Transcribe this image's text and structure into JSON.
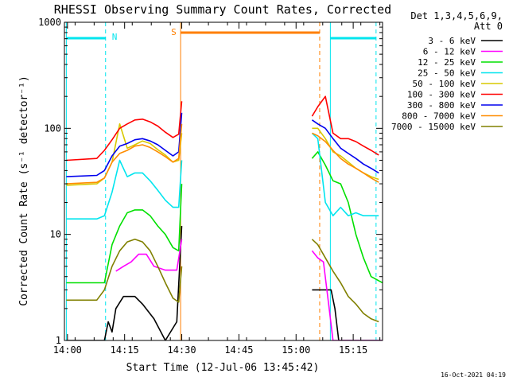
{
  "chart_data": {
    "type": "line",
    "title": "RHESSI Observing Summary Count Rates, Corrected",
    "xlabel": "Start Time (12-Jul-06 13:45:42)",
    "ylabel": "Corrected Count Rate (s⁻¹ detector⁻¹)",
    "yscale": "log",
    "ylim": [
      1,
      1000
    ],
    "xlim_minutes": [
      13.5,
      97
    ],
    "x_tick_labels": [
      "14:00",
      "14:15",
      "14:30",
      "14:45",
      "15:00",
      "15:15"
    ],
    "x_tick_minutes": [
      14.3,
      29.3,
      44.3,
      59.3,
      74.3,
      89.3
    ],
    "y_tick_values": [
      1,
      10,
      100,
      1000
    ],
    "y_tick_labels": [
      "1",
      "10",
      "100",
      "1000"
    ],
    "footer_date": "16-Oct-2021 04:19",
    "legend": {
      "title_line1": "Det 1,3,4,5,6,9,",
      "title_line2": "Att 0",
      "placement": "right"
    },
    "annotations": {
      "night_label": "N",
      "saa_label": "S",
      "night_color": "#00e5ee",
      "saa_color": "#ff7f00",
      "night_boundaries_minutes": [
        14,
        24.3,
        83.3,
        95.3
      ],
      "saa_boundaries_minutes": [
        44,
        80.5
      ]
    },
    "data_gaps_minutes": [
      [
        44.5,
        78.5
      ]
    ],
    "series": [
      {
        "name": "3 - 6 keV",
        "color": "#000000",
        "points": [
          [
            14,
            1
          ],
          [
            22,
            1
          ],
          [
            24,
            1
          ],
          [
            25,
            1.5
          ],
          [
            26,
            1.2
          ],
          [
            27,
            2.0
          ],
          [
            29,
            2.6
          ],
          [
            32,
            2.6
          ],
          [
            34,
            2.2
          ],
          [
            37,
            1.6
          ],
          [
            40,
            1.0
          ],
          [
            43,
            1.5
          ],
          [
            44.3,
            12
          ],
          [
            78.5,
            3.0
          ],
          [
            82,
            3.0
          ],
          [
            83.5,
            3.0
          ],
          [
            84.5,
            2.0
          ],
          [
            85.5,
            1.0
          ],
          [
            97,
            1.0
          ]
        ]
      },
      {
        "name": "6 - 12 keV",
        "color": "#ff00ff",
        "points": [
          [
            27,
            4.5
          ],
          [
            29,
            5.0
          ],
          [
            31,
            5.5
          ],
          [
            33,
            6.5
          ],
          [
            35,
            6.5
          ],
          [
            37,
            5.0
          ],
          [
            40,
            4.6
          ],
          [
            43,
            4.6
          ],
          [
            44.3,
            9.0
          ],
          [
            78.5,
            7.0
          ],
          [
            80,
            6.0
          ],
          [
            81.5,
            5.5
          ],
          [
            83,
            2.0
          ],
          [
            84,
            1.0
          ],
          [
            97,
            1.0
          ]
        ]
      },
      {
        "name": "12 - 25 keV",
        "color": "#00e000",
        "points": [
          [
            14,
            3.5
          ],
          [
            22,
            3.5
          ],
          [
            24,
            3.5
          ],
          [
            26,
            8.0
          ],
          [
            28,
            12
          ],
          [
            30,
            16
          ],
          [
            32,
            17
          ],
          [
            34,
            17
          ],
          [
            36,
            15
          ],
          [
            38,
            12
          ],
          [
            40,
            10
          ],
          [
            42,
            7.5
          ],
          [
            43.5,
            7.0
          ],
          [
            44.3,
            30
          ],
          [
            78.5,
            52
          ],
          [
            80,
            60
          ],
          [
            82,
            45
          ],
          [
            84,
            32
          ],
          [
            86,
            30
          ],
          [
            88,
            20
          ],
          [
            90,
            10
          ],
          [
            92,
            6
          ],
          [
            94,
            4
          ],
          [
            97,
            3.5
          ]
        ]
      },
      {
        "name": "25 - 50 keV",
        "color": "#00e5ee",
        "points": [
          [
            14,
            14
          ],
          [
            22,
            14
          ],
          [
            24,
            15
          ],
          [
            26,
            25
          ],
          [
            28,
            50
          ],
          [
            30,
            35
          ],
          [
            32,
            38
          ],
          [
            34,
            38
          ],
          [
            36,
            32
          ],
          [
            38,
            26
          ],
          [
            40,
            21
          ],
          [
            42,
            18
          ],
          [
            43.5,
            18
          ],
          [
            44.3,
            50
          ],
          [
            78.5,
            90
          ],
          [
            80,
            80
          ],
          [
            82,
            20
          ],
          [
            84,
            15
          ],
          [
            86,
            18
          ],
          [
            88,
            15
          ],
          [
            90,
            16
          ],
          [
            92,
            15
          ],
          [
            94,
            15
          ],
          [
            96,
            15
          ]
        ]
      },
      {
        "name": "50 - 100 keV",
        "color": "#d8c800",
        "points": [
          [
            14,
            29
          ],
          [
            22,
            30
          ],
          [
            24,
            34
          ],
          [
            26,
            48
          ],
          [
            28,
            110
          ],
          [
            30,
            65
          ],
          [
            32,
            70
          ],
          [
            34,
            76
          ],
          [
            36,
            72
          ],
          [
            38,
            63
          ],
          [
            40,
            56
          ],
          [
            42,
            48
          ],
          [
            43.5,
            50
          ],
          [
            44.3,
            90
          ],
          [
            78.5,
            100
          ],
          [
            80,
            100
          ],
          [
            82,
            80
          ],
          [
            84,
            60
          ],
          [
            86,
            55
          ],
          [
            88,
            48
          ],
          [
            90,
            42
          ],
          [
            92,
            38
          ],
          [
            94,
            35
          ],
          [
            96,
            33
          ]
        ]
      },
      {
        "name": "100 - 300 keV",
        "color": "#ff0000",
        "points": [
          [
            14,
            50
          ],
          [
            22,
            52
          ],
          [
            24,
            62
          ],
          [
            26,
            78
          ],
          [
            28,
            100
          ],
          [
            30,
            110
          ],
          [
            32,
            120
          ],
          [
            34,
            122
          ],
          [
            36,
            115
          ],
          [
            38,
            105
          ],
          [
            40,
            92
          ],
          [
            42,
            82
          ],
          [
            43.5,
            88
          ],
          [
            44.3,
            180
          ],
          [
            78.5,
            130
          ],
          [
            80,
            160
          ],
          [
            82,
            200
          ],
          [
            84,
            90
          ],
          [
            86,
            80
          ],
          [
            88,
            80
          ],
          [
            90,
            75
          ],
          [
            92,
            68
          ],
          [
            94,
            62
          ],
          [
            96,
            56
          ]
        ]
      },
      {
        "name": "300 - 800 keV",
        "color": "#0000ee",
        "points": [
          [
            14,
            35
          ],
          [
            22,
            36
          ],
          [
            24,
            40
          ],
          [
            26,
            55
          ],
          [
            28,
            68
          ],
          [
            30,
            72
          ],
          [
            32,
            78
          ],
          [
            34,
            80
          ],
          [
            36,
            76
          ],
          [
            38,
            70
          ],
          [
            40,
            62
          ],
          [
            42,
            55
          ],
          [
            43.5,
            60
          ],
          [
            44.3,
            140
          ],
          [
            78.5,
            120
          ],
          [
            80,
            110
          ],
          [
            82,
            100
          ],
          [
            84,
            80
          ],
          [
            86,
            65
          ],
          [
            88,
            58
          ],
          [
            90,
            52
          ],
          [
            92,
            46
          ],
          [
            94,
            42
          ],
          [
            96,
            38
          ]
        ]
      },
      {
        "name": "800 - 7000 keV",
        "color": "#ff8c00",
        "points": [
          [
            14,
            30
          ],
          [
            22,
            31
          ],
          [
            24,
            34
          ],
          [
            26,
            48
          ],
          [
            28,
            58
          ],
          [
            30,
            62
          ],
          [
            32,
            68
          ],
          [
            34,
            70
          ],
          [
            36,
            66
          ],
          [
            38,
            60
          ],
          [
            40,
            54
          ],
          [
            42,
            48
          ],
          [
            43.5,
            52
          ],
          [
            44.3,
            110
          ],
          [
            78.5,
            90
          ],
          [
            80,
            85
          ],
          [
            82,
            75
          ],
          [
            84,
            62
          ],
          [
            86,
            52
          ],
          [
            88,
            46
          ],
          [
            90,
            42
          ],
          [
            92,
            38
          ],
          [
            94,
            34
          ],
          [
            96,
            31
          ]
        ]
      },
      {
        "name": "7000 - 15000 keV",
        "color": "#808000",
        "points": [
          [
            14,
            2.4
          ],
          [
            22,
            2.4
          ],
          [
            24,
            3.0
          ],
          [
            26,
            5.0
          ],
          [
            28,
            7.0
          ],
          [
            30,
            8.5
          ],
          [
            32,
            9.0
          ],
          [
            34,
            8.5
          ],
          [
            36,
            7.0
          ],
          [
            38,
            5.0
          ],
          [
            40,
            3.5
          ],
          [
            42,
            2.5
          ],
          [
            43.5,
            2.3
          ],
          [
            44.3,
            5.0
          ],
          [
            78.5,
            9.0
          ],
          [
            80,
            8.0
          ],
          [
            82,
            6.0
          ],
          [
            84,
            4.5
          ],
          [
            86,
            3.5
          ],
          [
            88,
            2.6
          ],
          [
            90,
            2.2
          ],
          [
            92,
            1.8
          ],
          [
            94,
            1.6
          ],
          [
            96,
            1.5
          ]
        ]
      }
    ]
  }
}
